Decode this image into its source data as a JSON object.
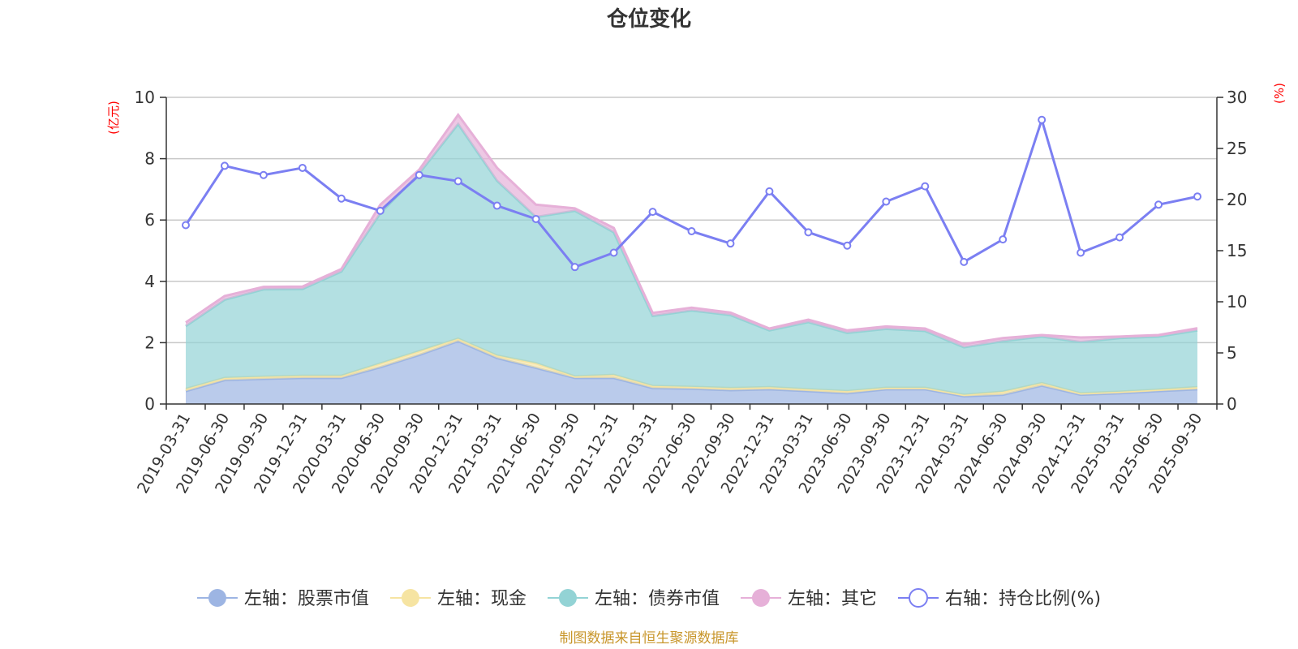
{
  "title": "仓位变化",
  "source": "制图数据来自恒生聚源数据库",
  "colors": {
    "stock": "#9db5e3",
    "cash": "#f6e4a2",
    "bond": "#93d3d5",
    "other": "#e6b0d8",
    "ratio": "#7b7ff2",
    "unit": "#ff0000",
    "grid": "#c8c8c8"
  },
  "chart_data": {
    "type": "area",
    "title": "仓位变化",
    "left_axis": {
      "unit": "(亿元)",
      "ylim": [
        0,
        10
      ],
      "ticks": [
        "0",
        "2",
        "4",
        "6",
        "8",
        "10"
      ]
    },
    "right_axis": {
      "unit": "(%)",
      "ylim": [
        0,
        30
      ],
      "ticks": [
        "0",
        "5",
        "10",
        "15",
        "20",
        "25",
        "30"
      ]
    },
    "categories": [
      "2019-03-31",
      "2019-06-30",
      "2019-09-30",
      "2019-12-31",
      "2020-03-31",
      "2020-06-30",
      "2020-09-30",
      "2020-12-31",
      "2021-03-31",
      "2021-06-30",
      "2021-09-30",
      "2021-12-31",
      "2022-03-31",
      "2022-06-30",
      "2022-09-30",
      "2022-12-31",
      "2023-03-31",
      "2023-06-30",
      "2023-09-30",
      "2023-12-31",
      "2024-03-31",
      "2024-06-30",
      "2024-09-30",
      "2024-12-31",
      "2025-03-31",
      "2025-06-30",
      "2025-09-30"
    ],
    "stacked_area_series": [
      {
        "name": "左轴：股票市值",
        "axis": "left",
        "values": [
          0.42,
          0.78,
          0.82,
          0.85,
          0.85,
          1.2,
          1.6,
          2.05,
          1.5,
          1.18,
          0.85,
          0.85,
          0.52,
          0.5,
          0.45,
          0.48,
          0.42,
          0.35,
          0.48,
          0.48,
          0.25,
          0.3,
          0.6,
          0.3,
          0.35,
          0.42,
          0.48
        ]
      },
      {
        "name": "左轴：现金",
        "axis": "left",
        "values": [
          0.07,
          0.07,
          0.07,
          0.07,
          0.07,
          0.12,
          0.12,
          0.08,
          0.08,
          0.15,
          0.05,
          0.1,
          0.07,
          0.06,
          0.07,
          0.07,
          0.06,
          0.07,
          0.05,
          0.05,
          0.05,
          0.1,
          0.08,
          0.05,
          0.05,
          0.05,
          0.07
        ]
      },
      {
        "name": "左轴：债券市值",
        "axis": "left",
        "values": [
          2.05,
          2.55,
          2.85,
          2.83,
          3.4,
          4.9,
          5.8,
          7.0,
          5.7,
          4.77,
          5.4,
          4.65,
          2.28,
          2.49,
          2.38,
          1.85,
          2.19,
          1.9,
          1.92,
          1.85,
          1.55,
          1.65,
          1.52,
          1.67,
          1.75,
          1.73,
          1.85
        ]
      },
      {
        "name": "左轴：其它",
        "axis": "left",
        "values": [
          0.12,
          0.12,
          0.08,
          0.08,
          0.08,
          0.28,
          0.12,
          0.3,
          0.42,
          0.4,
          0.08,
          0.14,
          0.1,
          0.09,
          0.08,
          0.06,
          0.08,
          0.08,
          0.08,
          0.08,
          0.1,
          0.1,
          0.05,
          0.15,
          0.05,
          0.05,
          0.07
        ]
      }
    ],
    "line_series": [
      {
        "name": "右轴：持仓比例(%)",
        "axis": "right",
        "values": [
          17.5,
          23.3,
          22.4,
          23.1,
          20.1,
          18.9,
          22.4,
          21.8,
          19.4,
          18.1,
          13.4,
          14.8,
          18.8,
          16.9,
          15.7,
          20.8,
          16.8,
          15.5,
          19.8,
          21.3,
          13.9,
          16.1,
          27.8,
          14.8,
          16.3,
          19.5,
          20.3
        ]
      }
    ],
    "legend": [
      "左轴：股票市值",
      "左轴：现金",
      "左轴：债券市值",
      "左轴：其它",
      "右轴：持仓比例(%)"
    ],
    "grid": true,
    "legend_position": "bottom-center"
  }
}
